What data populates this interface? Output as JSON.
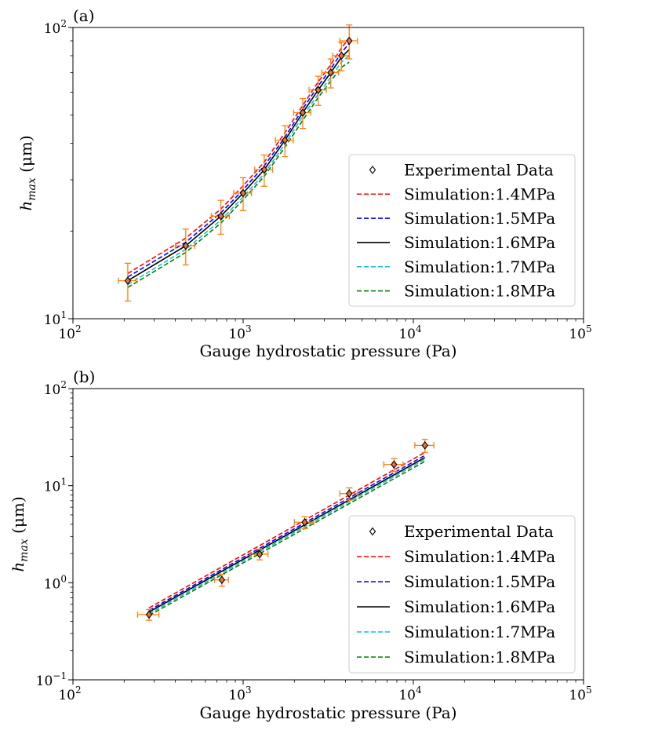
{
  "chart_data": [
    {
      "type": "scatter",
      "panel_label": "(a)",
      "title": "",
      "xlabel": "Gauge hydrostatic pressure (Pa)",
      "ylabel_main": "h",
      "ylabel_sub": "max",
      "ylabel_unit": " (μm)",
      "xscale": "log",
      "yscale": "log",
      "xlim": [
        100,
        100000
      ],
      "ylim": [
        10,
        100
      ],
      "x_ticks": [
        {
          "value": 100,
          "base": "10",
          "exp": "2"
        },
        {
          "value": 1000,
          "base": "10",
          "exp": "3"
        },
        {
          "value": 10000,
          "base": "10",
          "exp": "4"
        },
        {
          "value": 100000,
          "base": "10",
          "exp": "5"
        }
      ],
      "y_ticks": [
        {
          "value": 10,
          "base": "10",
          "exp": "1"
        },
        {
          "value": 100,
          "base": "10",
          "exp": "2"
        }
      ],
      "legend_position": "lower-right",
      "experimental": {
        "name": "Experimental Data",
        "x": [
          210,
          460,
          740,
          1000,
          1330,
          1760,
          2240,
          2760,
          3270,
          3780,
          4200
        ],
        "y": [
          13.5,
          17.8,
          22.5,
          27,
          32.5,
          41,
          51,
          61,
          70,
          80,
          90
        ],
        "xerr": [
          25,
          60,
          90,
          120,
          160,
          210,
          260,
          320,
          370,
          420,
          500
        ],
        "yerr": [
          2,
          2.5,
          3,
          3.5,
          4,
          5,
          6,
          7,
          8,
          9,
          12
        ]
      },
      "series": [
        {
          "name": "Simulation:1.4MPa",
          "style": "dashed",
          "color": "#ff0000",
          "x": [
            210,
            460,
            740,
            1000,
            1330,
            1760,
            2240,
            2760,
            3270,
            3780,
            4200
          ],
          "y": [
            14.3,
            18.9,
            23.8,
            28.6,
            34.5,
            43.5,
            54,
            65,
            74.5,
            85,
            92
          ]
        },
        {
          "name": "Simulation:1.5MPa",
          "style": "dashed",
          "color": "#0000ff",
          "x": [
            210,
            460,
            740,
            1000,
            1330,
            1760,
            2240,
            2760,
            3270,
            3780,
            4200
          ],
          "y": [
            13.9,
            18.3,
            23.1,
            27.7,
            33.5,
            42,
            52.5,
            63,
            72,
            82,
            88
          ]
        },
        {
          "name": "Simulation:1.6MPa",
          "style": "solid",
          "color": "#000000",
          "x": [
            210,
            460,
            740,
            1000,
            1330,
            1760,
            2240,
            2760,
            3270,
            3780,
            4200
          ],
          "y": [
            13.5,
            17.8,
            22.5,
            27,
            32.5,
            41,
            51,
            61,
            70,
            79,
            84
          ]
        },
        {
          "name": "Simulation:1.7MPa",
          "style": "dashed",
          "color": "#17becf",
          "x": [
            210,
            460,
            740,
            1000,
            1330,
            1760,
            2240,
            2760,
            3270,
            3780,
            4200
          ],
          "y": [
            13.1,
            17.3,
            21.8,
            26.2,
            31.5,
            39.8,
            49.5,
            59,
            67.5,
            76,
            80
          ]
        },
        {
          "name": "Simulation:1.8MPa",
          "style": "dashed",
          "color": "#008000",
          "x": [
            210,
            460,
            740,
            1000,
            1330,
            1760,
            2240,
            2760,
            3270,
            3780,
            4200
          ],
          "y": [
            12.8,
            16.9,
            21.3,
            25.6,
            30.8,
            38.8,
            48,
            57.5,
            65.5,
            73,
            76
          ]
        }
      ]
    },
    {
      "type": "scatter",
      "panel_label": "(b)",
      "title": "",
      "xlabel": "Gauge hydrostatic pressure (Pa)",
      "ylabel_main": "h",
      "ylabel_sub": "max",
      "ylabel_unit": " (μm)",
      "xscale": "log",
      "yscale": "log",
      "xlim": [
        100,
        100000
      ],
      "ylim": [
        0.1,
        100
      ],
      "x_ticks": [
        {
          "value": 100,
          "base": "10",
          "exp": "2"
        },
        {
          "value": 1000,
          "base": "10",
          "exp": "3"
        },
        {
          "value": 10000,
          "base": "10",
          "exp": "4"
        },
        {
          "value": 100000,
          "base": "10",
          "exp": "5"
        }
      ],
      "y_ticks": [
        {
          "value": 0.1,
          "base": "10",
          "exp": "−1"
        },
        {
          "value": 1,
          "base": "10",
          "exp": "0"
        },
        {
          "value": 10,
          "base": "10",
          "exp": "1"
        },
        {
          "value": 100,
          "base": "10",
          "exp": "2"
        }
      ],
      "legend_position": "lower-right",
      "experimental": {
        "name": "Experimental Data",
        "x": [
          280,
          750,
          1250,
          2300,
          4200,
          7700,
          11700
        ],
        "y": [
          0.47,
          1.07,
          1.97,
          4.2,
          8.3,
          16.5,
          26
        ],
        "xerr": [
          40,
          70,
          150,
          300,
          500,
          1000,
          1500
        ],
        "yerr": [
          0.06,
          0.15,
          0.25,
          0.6,
          1.2,
          2.5,
          4
        ]
      },
      "series": [
        {
          "name": "Simulation:1.4MPa",
          "style": "dashed",
          "color": "#ff0000",
          "x": [
            280,
            11700
          ],
          "y": [
            0.55,
            22
          ]
        },
        {
          "name": "Simulation:1.5MPa",
          "style": "dashed",
          "color": "#0000ff",
          "x": [
            280,
            11700
          ],
          "y": [
            0.52,
            20.5
          ]
        },
        {
          "name": "Simulation:1.6MPa",
          "style": "solid",
          "color": "#000000",
          "x": [
            280,
            11700
          ],
          "y": [
            0.5,
            19.5
          ]
        },
        {
          "name": "Simulation:1.7MPa",
          "style": "dashed",
          "color": "#17becf",
          "x": [
            280,
            11700
          ],
          "y": [
            0.48,
            18.7
          ]
        },
        {
          "name": "Simulation:1.8MPa",
          "style": "dashed",
          "color": "#008000",
          "x": [
            280,
            11700
          ],
          "y": [
            0.46,
            17.8
          ]
        }
      ]
    }
  ],
  "colors": {
    "errorbar": "#ff7f0e",
    "marker_fill": "#e8743b",
    "marker_edge": "#000000"
  }
}
